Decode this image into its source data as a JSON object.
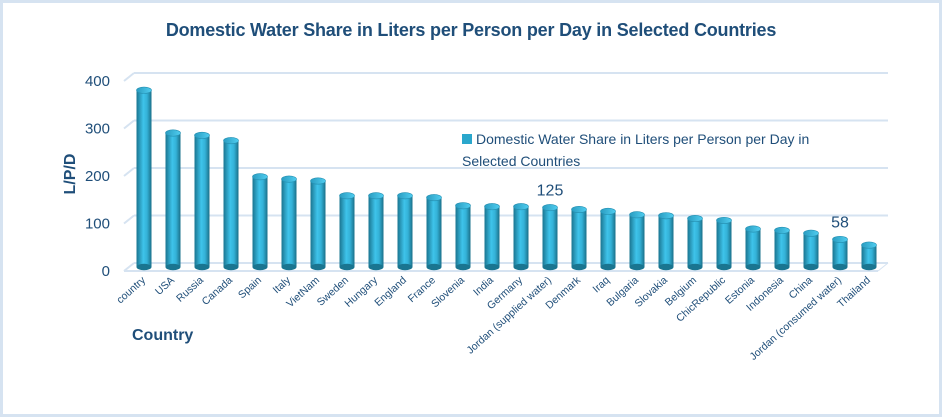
{
  "chart_data": {
    "type": "bar",
    "title": "Domestic Water Share in Liters per Person per Day in Selected Countries",
    "xlabel": "Country",
    "ylabel": "L/P/D",
    "ylim": [
      0,
      400
    ],
    "yticks": [
      "0",
      "100",
      "200",
      "300",
      "400"
    ],
    "grid": true,
    "style": "3d-cylinder",
    "legend": {
      "position": "center-right",
      "entries": [
        "Domestic Water Share in Liters per Person per Day in Selected Countries"
      ]
    },
    "categories": [
      "country",
      "USA",
      "Russia",
      "Canada",
      "Spain",
      "Italy",
      "VietNam",
      "Sweden",
      "Hungary",
      "England",
      "France",
      "Slovenia",
      "India",
      "Germany",
      "Jordan (supplied water)",
      "Denmark",
      "Iraq",
      "Bulgaria",
      "Slovakia",
      "Belgium",
      "ChicRepublic",
      "Estonia",
      "Indonesia",
      "China",
      "Jordan (consumed water)",
      "Thailand"
    ],
    "series": [
      {
        "name": "Domestic Water Share in Liters per Person per Day in Selected Countries",
        "color": "#2aa7cc",
        "values": [
          372,
          282,
          277,
          266,
          190,
          185,
          181,
          150,
          150,
          150,
          146,
          129,
          127,
          127,
          125,
          121,
          117,
          110,
          108,
          102,
          98,
          80,
          77,
          71,
          58,
          46
        ]
      }
    ],
    "data_labels": [
      {
        "category": "Jordan (supplied water)",
        "text": "125"
      },
      {
        "category": "Jordan (consumed water)",
        "text": "58"
      }
    ]
  },
  "colors": {
    "title": "#1f4e79",
    "bar_light": "#3ec3ea",
    "bar_dark": "#1a7590",
    "gridline": "#d6e3f1",
    "frame": "#d6e3f1"
  }
}
